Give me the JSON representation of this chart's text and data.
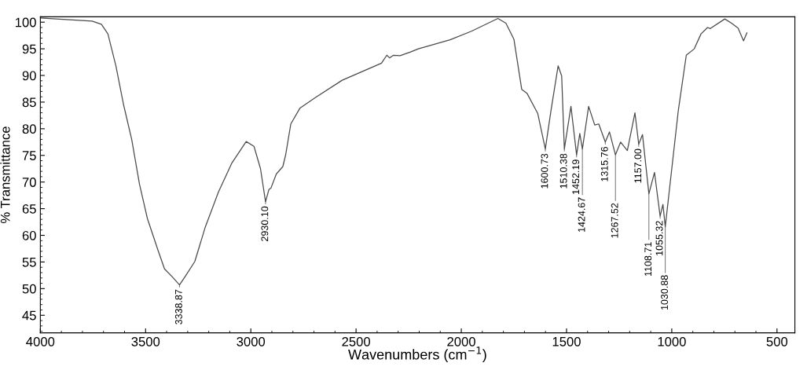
{
  "chart_data": {
    "type": "line",
    "xlabel": "Wavenumbers (cm$^{−1}$)",
    "ylabel": "% Transmittance",
    "xlim": [
      4000,
      415
    ],
    "ylim": [
      41.7,
      101
    ],
    "xticks": [
      4000,
      3500,
      3000,
      2500,
      2000,
      1500,
      1000,
      500
    ],
    "yticks": [
      45,
      50,
      55,
      60,
      65,
      70,
      75,
      80,
      85,
      90,
      95,
      100
    ],
    "grid": false,
    "legend": false,
    "marker": "none",
    "line_style": "solid",
    "series": [
      {
        "color": "#4a4a4a",
        "x": [
          4000,
          3754,
          3710,
          3679,
          3641,
          3604,
          3566,
          3529,
          3491,
          3441,
          3410,
          3373,
          3338.87,
          3310,
          3266,
          3216,
          3154,
          3091,
          3022,
          2985,
          2954,
          2930.1,
          2914,
          2904,
          2879,
          2848,
          2835,
          2810,
          2766,
          2691,
          2566,
          2379,
          2354,
          2341,
          2322,
          2291,
          2241,
          2204,
          2053,
          1952,
          1826,
          1788,
          1750,
          1713,
          1687,
          1637,
          1600.73,
          1574,
          1540,
          1523,
          1510.38,
          1479,
          1452.19,
          1437,
          1424.67,
          1395,
          1366,
          1347,
          1315.76,
          1296,
          1267.52,
          1243,
          1211,
          1175,
          1157,
          1139,
          1108.71,
          1082,
          1055.32,
          1042,
          1030.88,
          969,
          931,
          893,
          861,
          830,
          817,
          748,
          716,
          685,
          659,
          643
        ],
        "values": [
          100.8,
          100.2,
          99.6,
          97.8,
          91.8,
          84.4,
          78.0,
          69.6,
          63.1,
          57.2,
          53.7,
          52.2,
          50.7,
          52.4,
          55.1,
          61.6,
          68.1,
          73.5,
          77.6,
          76.7,
          72.5,
          66.3,
          68.6,
          68.9,
          71.5,
          72.9,
          75.0,
          80.9,
          83.9,
          85.9,
          89.1,
          92.3,
          93.8,
          93.3,
          93.8,
          93.7,
          94.4,
          95.0,
          96.7,
          98.3,
          100.7,
          99.8,
          96.8,
          87.4,
          86.6,
          82.9,
          76.2,
          83.4,
          91.8,
          89.9,
          76.2,
          84.2,
          75.1,
          79.1,
          76.2,
          84.2,
          80.7,
          80.9,
          77.5,
          79.4,
          75.1,
          77.5,
          75.9,
          83.0,
          77.1,
          78.9,
          67.8,
          71.8,
          63.6,
          65.8,
          61.6,
          83.4,
          93.8,
          95.0,
          97.8,
          99.0,
          98.8,
          100.6,
          99.8,
          98.9,
          96.5,
          98.0
        ]
      }
    ],
    "annotations": [
      {
        "text": "3338.87",
        "x": 3338.87,
        "y": 50.7
      },
      {
        "text": "2930.10",
        "x": 2930.1,
        "y": 66.3
      },
      {
        "text": "1600.73",
        "x": 1600.73,
        "y": 76.2
      },
      {
        "text": "1510.38",
        "x": 1510.38,
        "y": 76.2
      },
      {
        "text": "1452.19",
        "x": 1452.19,
        "y": 75.1
      },
      {
        "text": "1424.67",
        "x": 1424.67,
        "y": 76.2
      },
      {
        "text": "1315.76",
        "x": 1315.76,
        "y": 77.5
      },
      {
        "text": "1267.52",
        "x": 1267.52,
        "y": 75.1
      },
      {
        "text": "1157.00",
        "x": 1157,
        "y": 77.1
      },
      {
        "text": "1108.71",
        "x": 1108.71,
        "y": 67.8
      },
      {
        "text": "1055.32",
        "x": 1055.32,
        "y": 63.6
      },
      {
        "text": "1030.88",
        "x": 1030.88,
        "y": 61.6
      }
    ]
  }
}
